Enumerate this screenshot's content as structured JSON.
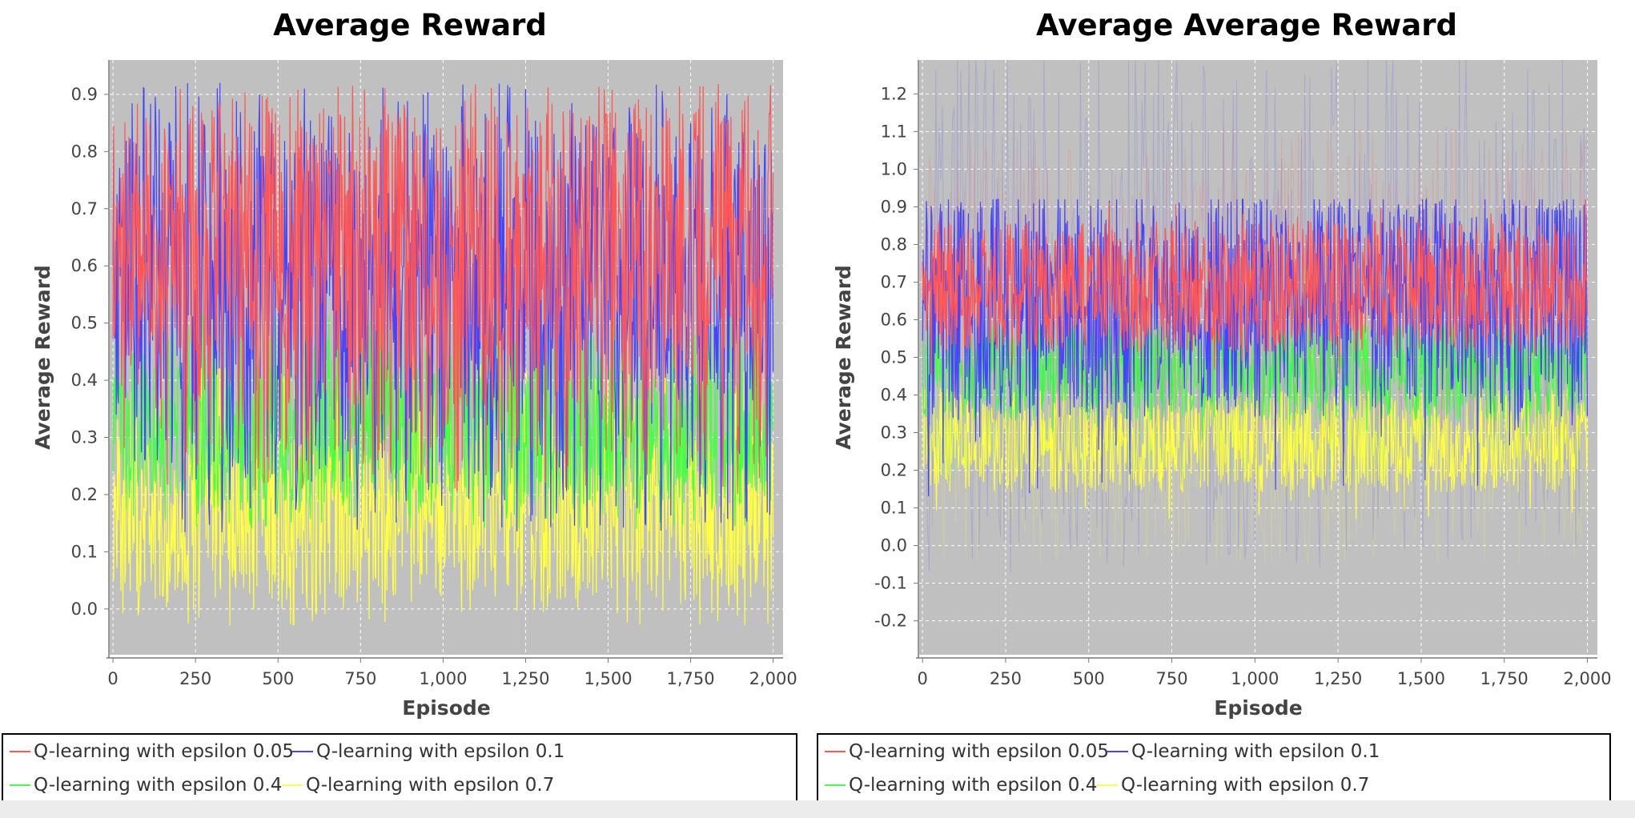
{
  "chart_data": [
    {
      "type": "line",
      "title": "Average Reward",
      "xlabel": "Episode",
      "ylabel": "Average Reward",
      "xlim": [
        -10,
        2030
      ],
      "ylim": [
        -0.08,
        0.96
      ],
      "xticks": [
        0,
        250,
        500,
        750,
        1000,
        1250,
        1500,
        1750,
        2000
      ],
      "xtick_labels": [
        "0",
        "250",
        "500",
        "750",
        "1,000",
        "1,250",
        "1,500",
        "1,750",
        "2,000"
      ],
      "yticks": [
        0.0,
        0.1,
        0.2,
        0.3,
        0.4,
        0.5,
        0.6,
        0.7,
        0.8,
        0.9
      ],
      "ytick_labels": [
        "0.0",
        "0.1",
        "0.2",
        "0.3",
        "0.4",
        "0.5",
        "0.6",
        "0.7",
        "0.8",
        "0.9"
      ],
      "grid": true,
      "legend_position": "bottom",
      "episodes": 2000,
      "series": [
        {
          "name": "Q-learning with epsilon 0.7",
          "color": "#ffff44",
          "mean": 0.16,
          "spread_low": -0.03,
          "spread_high": 0.46
        },
        {
          "name": "Q-learning with epsilon 0.4",
          "color": "#44ff44",
          "mean": 0.3,
          "spread_low": 0.14,
          "spread_high": 0.53
        },
        {
          "name": "Q-learning with epsilon 0.1",
          "color": "#4444ff",
          "mean": 0.6,
          "spread_low": 0.13,
          "spread_high": 0.92
        },
        {
          "name": "Q-learning with epsilon 0.05",
          "color": "#ff5555",
          "mean": 0.66,
          "spread_low": 0.2,
          "spread_high": 0.92
        }
      ]
    },
    {
      "type": "line",
      "title": "Average Average Reward",
      "xlabel": "Episode",
      "ylabel": "Average Reward",
      "xlim": [
        -10,
        2030
      ],
      "ylim": [
        -0.29,
        1.29
      ],
      "xticks": [
        0,
        250,
        500,
        750,
        1000,
        1250,
        1500,
        1750,
        2000
      ],
      "xtick_labels": [
        "0",
        "250",
        "500",
        "750",
        "1,000",
        "1,250",
        "1,500",
        "1,750",
        "2,000"
      ],
      "yticks": [
        -0.2,
        -0.1,
        0.0,
        0.1,
        0.2,
        0.3,
        0.4,
        0.5,
        0.6,
        0.7,
        0.8,
        0.9,
        1.0,
        1.1,
        1.2
      ],
      "ytick_labels": [
        "-0.2",
        "-0.1",
        "0.0",
        "0.1",
        "0.2",
        "0.3",
        "0.4",
        "0.5",
        "0.6",
        "0.7",
        "0.8",
        "0.9",
        "1.0",
        "1.1",
        "1.2"
      ],
      "grid": true,
      "legend_position": "bottom",
      "episodes": 2000,
      "series": [
        {
          "name": "Q-learning with epsilon 0.7",
          "color": "#ffff44",
          "mean": 0.28,
          "spread_low": 0.07,
          "spread_high": 0.44
        },
        {
          "name": "Q-learning with epsilon 0.4",
          "color": "#44ff44",
          "mean": 0.46,
          "spread_low": 0.28,
          "spread_high": 0.62
        },
        {
          "name": "Q-learning with epsilon 0.1",
          "color": "#4444ff",
          "mean": 0.64,
          "spread_low": 0.12,
          "spread_high": 0.92
        },
        {
          "name": "Q-learning with epsilon 0.05",
          "color": "#ff5555",
          "mean": 0.69,
          "spread_low": 0.45,
          "spread_high": 0.92
        }
      ]
    }
  ],
  "legends": [
    {
      "items": [
        {
          "label": "Q-learning with epsilon 0.05",
          "color": "#ff5555"
        },
        {
          "label": "Q-learning with epsilon 0.1",
          "color": "#4444ff"
        },
        {
          "label": "Q-learning with epsilon 0.4",
          "color": "#44ff44"
        },
        {
          "label": "Q-learning with epsilon 0.7",
          "color": "#ffff44"
        }
      ]
    },
    {
      "items": [
        {
          "label": "Q-learning with epsilon 0.05",
          "color": "#ff5555"
        },
        {
          "label": "Q-learning with epsilon 0.1",
          "color": "#4444ff"
        },
        {
          "label": "Q-learning with epsilon 0.4",
          "color": "#44ff44"
        },
        {
          "label": "Q-learning with epsilon 0.7",
          "color": "#ffff44"
        }
      ]
    }
  ],
  "colors": {
    "plot_background": "#c0c0c0",
    "gridline": "#ffffff",
    "axis_text": "#444444",
    "title_text": "#000000"
  }
}
